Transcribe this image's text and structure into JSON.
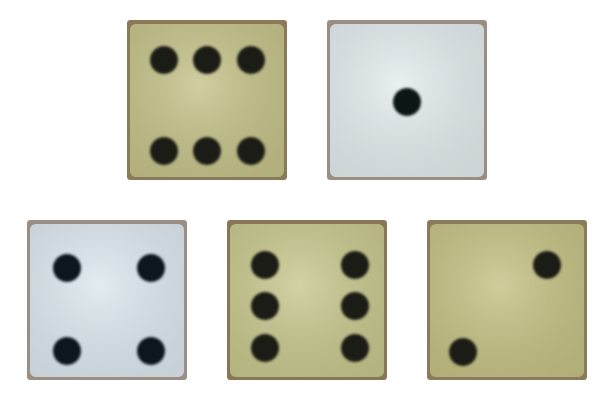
{
  "dice": [
    {
      "value": 6,
      "orientation": "horizontal",
      "face_color": "#c6c38a",
      "edge_color": "#8a7a58",
      "pip_color": "#1d1e17"
    },
    {
      "value": 1,
      "orientation": "none",
      "face_color": "#e4ecef",
      "edge_color": "#9a8e84",
      "pip_color": "#0f1418"
    },
    {
      "value": 4,
      "orientation": "none",
      "face_color": "#dde8ee",
      "edge_color": "#9b8e85",
      "pip_color": "#11171c"
    },
    {
      "value": 6,
      "orientation": "vertical",
      "face_color": "#c8c88f",
      "edge_color": "#877756",
      "pip_color": "#1b1c15"
    },
    {
      "value": 2,
      "orientation": "diagonal",
      "face_color": "#c5c285",
      "edge_color": "#8a7b5a",
      "pip_color": "#1d1d16"
    }
  ]
}
